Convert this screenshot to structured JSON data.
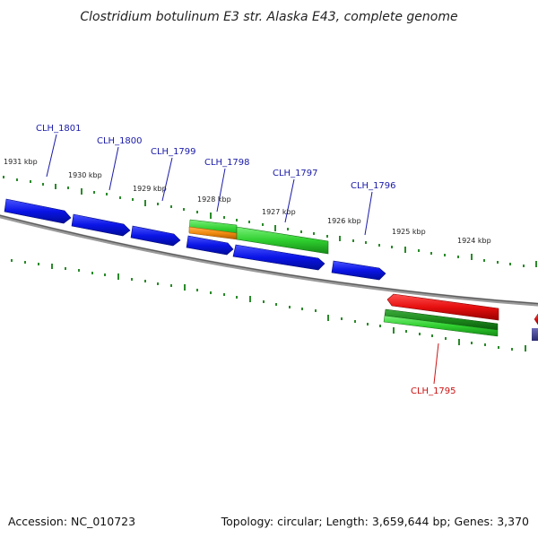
{
  "title": "Clostridium botulinum E3 str. Alaska E43, complete genome",
  "footer": {
    "accession": "Accession: NC_010723",
    "summary": "Topology: circular; Length: 3,659,644 bp; Genes: 3,370"
  },
  "ticks": [
    "1931 kbp",
    "1930 kbp",
    "1929 kbp",
    "1928 kbp",
    "1927 kbp",
    "1926 kbp",
    "1925 kbp",
    "1924 kbp"
  ],
  "genes": [
    {
      "label": "CLH_1801",
      "color": "#1a1aa8"
    },
    {
      "label": "CLH_1800",
      "color": "#1a1aa8"
    },
    {
      "label": "CLH_1799",
      "color": "#1a1aa8"
    },
    {
      "label": "CLH_1798",
      "color": "#1a1aa8"
    },
    {
      "label": "CLH_1797",
      "color": "#1a1aa8"
    },
    {
      "label": "CLH_1796",
      "color": "#1a1aa8"
    },
    {
      "label": "CLH_1795",
      "color": "#cc1111"
    }
  ],
  "colors": {
    "gene_blue": "#0a14e6",
    "gene_red": "#e60f0f",
    "gene_green": "#2fcf2f",
    "gene_dark_green": "#1c8a1c",
    "gene_orange": "#f08a10",
    "gene_navy": "#3a3a88",
    "backbone": "#7a7a7a",
    "tick_mark": "#2a8a2a"
  }
}
